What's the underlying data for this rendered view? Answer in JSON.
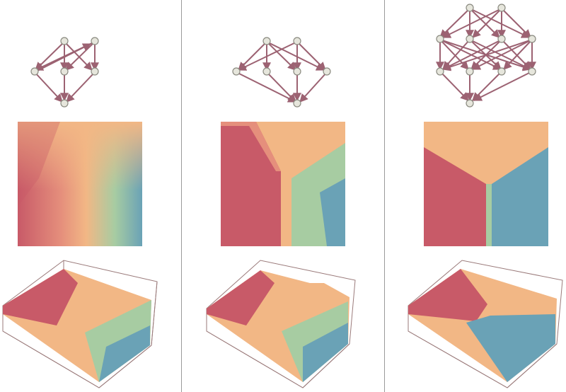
{
  "palette": {
    "red": "#c85a68",
    "orange": "#f2b785",
    "sage": "#a7cca2",
    "teal": "#6aa2b6",
    "edge": "#9c6272",
    "node_fill": "#e6e6dc",
    "node_stroke": "#8a8a80",
    "box_line": "#9a7a7a",
    "divider": "#9a9a9a"
  },
  "panels": [
    {
      "name": "panel-1",
      "graph": {
        "node_count": 8,
        "edge_style": "directed"
      },
      "heatmap": {
        "regions": [
          "red",
          "orange",
          "sage",
          "teal"
        ],
        "boundary": "diffuse"
      },
      "surface": {
        "contour_levels": 12
      }
    },
    {
      "name": "panel-2",
      "graph": {
        "node_count": 9,
        "edge_style": "directed"
      },
      "heatmap": {
        "regions": [
          "red",
          "orange",
          "sage",
          "teal"
        ],
        "boundary": "moderate"
      },
      "surface": {
        "contour_levels": 12
      }
    },
    {
      "name": "panel-3",
      "graph": {
        "node_count": 15,
        "edge_style": "directed"
      },
      "heatmap": {
        "regions": [
          "red",
          "orange",
          "teal"
        ],
        "boundary": "sharp"
      },
      "surface": {
        "contour_levels": 8
      }
    }
  ]
}
